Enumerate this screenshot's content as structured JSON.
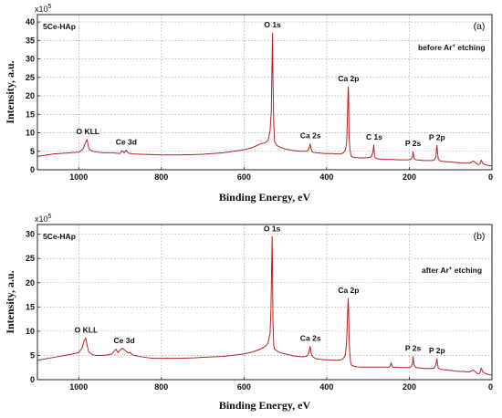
{
  "chart_data": [
    {
      "type": "line",
      "panel_label": "(a)",
      "sample_label": "5Ce-HAp",
      "condition_label_prefix": "before Ar",
      "condition_label_sup": "+",
      "condition_label_suffix": " etching",
      "multiplier_base": "x10",
      "multiplier_exp": "5",
      "xlabel": "Binding Energy, eV",
      "ylabel": "Intensity, a.u.",
      "xlim": [
        1100,
        0
      ],
      "ylim": [
        0,
        42
      ],
      "x_ticks": [
        1000,
        800,
        600,
        400,
        200,
        0
      ],
      "x_tick_labels": [
        "1000",
        "800",
        "600",
        "400",
        "200",
        "0"
      ],
      "y_ticks": [
        0,
        5,
        10,
        15,
        20,
        25,
        30,
        35,
        40
      ],
      "y_tick_labels": [
        "0",
        "5",
        "10",
        "15",
        "20",
        "25",
        "30",
        "35",
        "40"
      ],
      "grid": true,
      "line_color": "#b22222",
      "peaks": [
        {
          "name": "O KLL",
          "x": 978,
          "y": 8.2
        },
        {
          "name": "Ce 3d",
          "x": 885,
          "y": 5.3
        },
        {
          "name": "O 1s",
          "x": 531,
          "y": 37.0
        },
        {
          "name": "Ca 2s",
          "x": 439,
          "y": 7.0
        },
        {
          "name": "Ca 2p",
          "x": 347,
          "y": 22.5
        },
        {
          "name": "C 1s",
          "x": 285,
          "y": 6.7
        },
        {
          "name": "P 2s",
          "x": 191,
          "y": 4.9
        },
        {
          "name": "P 2p",
          "x": 133,
          "y": 6.6
        }
      ],
      "series": [
        {
          "x": [
            1100,
            1060,
            1020,
            1000,
            990,
            985,
            980,
            976,
            972,
            965,
            955,
            940,
            920,
            900,
            895,
            890,
            885,
            880,
            870,
            850,
            820,
            800,
            760,
            720,
            700,
            650,
            600,
            580,
            560,
            548,
            542,
            537,
            534,
            532,
            531,
            530,
            528,
            526,
            520,
            510,
            500,
            490,
            480,
            470,
            460,
            450,
            445,
            442,
            440,
            438,
            436,
            432,
            425,
            415,
            405,
            395,
            385,
            375,
            365,
            360,
            355,
            352,
            350,
            348,
            347,
            346,
            344,
            342,
            340,
            335,
            330,
            320,
            310,
            300,
            292,
            288,
            286,
            285,
            284,
            282,
            278,
            270,
            260,
            250,
            240,
            230,
            220,
            210,
            200,
            195,
            192,
            191,
            190,
            188,
            184,
            175,
            165,
            155,
            145,
            140,
            136,
            134,
            133,
            132,
            130,
            126,
            120,
            110,
            100,
            90,
            80,
            70,
            60,
            55,
            50,
            45,
            40,
            35,
            32,
            30,
            28,
            26,
            22,
            15,
            10,
            5,
            0
          ],
          "y": [
            3.6,
            4.3,
            4.6,
            4.8,
            5.5,
            7.0,
            8.2,
            6.0,
            5.3,
            5.0,
            4.8,
            4.6,
            4.6,
            4.4,
            5.2,
            4.6,
            5.3,
            4.5,
            4.3,
            4.2,
            4.1,
            4.0,
            4.0,
            4.1,
            4.2,
            4.6,
            5.4,
            6.0,
            7.0,
            7.4,
            7.9,
            10.5,
            16.0,
            30.0,
            37.0,
            25.0,
            12.0,
            7.5,
            6.5,
            6.0,
            5.6,
            5.4,
            5.2,
            5.1,
            5.0,
            5.0,
            5.3,
            6.0,
            7.0,
            5.8,
            5.0,
            4.7,
            4.6,
            4.5,
            4.4,
            4.4,
            4.4,
            4.3,
            4.3,
            4.6,
            5.2,
            7.0,
            13.0,
            22.5,
            21.0,
            10.0,
            6.0,
            4.2,
            3.6,
            3.4,
            3.3,
            3.2,
            3.2,
            3.3,
            3.5,
            4.8,
            6.7,
            5.0,
            3.6,
            3.2,
            3.0,
            2.9,
            2.8,
            2.8,
            2.8,
            2.7,
            2.7,
            2.7,
            2.7,
            2.9,
            3.8,
            4.9,
            4.0,
            3.0,
            2.7,
            2.6,
            2.5,
            2.5,
            2.5,
            2.6,
            3.4,
            5.8,
            6.6,
            5.0,
            2.9,
            2.4,
            2.3,
            2.2,
            2.1,
            2.0,
            1.9,
            1.8,
            1.8,
            1.8,
            2.0,
            2.4,
            1.9,
            1.5,
            1.4,
            1.5,
            1.9,
            2.6,
            1.7,
            1.3,
            1.2,
            1.1,
            1.0
          ]
        }
      ]
    },
    {
      "type": "line",
      "panel_label": "(b)",
      "sample_label": "5Ce-HAp",
      "condition_label_prefix": "after Ar",
      "condition_label_sup": "+",
      "condition_label_suffix": " etching",
      "multiplier_base": "x10",
      "multiplier_exp": "5",
      "xlabel": "Binding Energy, eV",
      "ylabel": "Intensity, a.u.",
      "xlim": [
        1100,
        0
      ],
      "ylim": [
        0,
        32
      ],
      "x_ticks": [
        1000,
        800,
        600,
        400,
        200,
        0
      ],
      "x_tick_labels": [
        "1000",
        "800",
        "600",
        "400",
        "200",
        "0"
      ],
      "y_ticks": [
        0,
        5,
        10,
        15,
        20,
        25,
        30
      ],
      "y_tick_labels": [
        "0",
        "5",
        "10",
        "15",
        "20",
        "25",
        "30"
      ],
      "grid": true,
      "line_color": "#b22222",
      "peaks": [
        {
          "name": "O KLL",
          "x": 982,
          "y": 8.6
        },
        {
          "name": "Ce 3d",
          "x": 890,
          "y": 6.4
        },
        {
          "name": "O 1s",
          "x": 532,
          "y": 29.5
        },
        {
          "name": "Ca 2s",
          "x": 439,
          "y": 6.9
        },
        {
          "name": "Ca 2p",
          "x": 347,
          "y": 16.8
        },
        {
          "name": "P 2s",
          "x": 191,
          "y": 4.8
        },
        {
          "name": "P 2p",
          "x": 133,
          "y": 4.3
        }
      ],
      "series": [
        {
          "x": [
            1100,
            1060,
            1020,
            1000,
            992,
            987,
            983,
            980,
            976,
            970,
            960,
            945,
            930,
            920,
            915,
            910,
            905,
            900,
            895,
            890,
            885,
            880,
            875,
            870,
            860,
            840,
            820,
            800,
            760,
            720,
            700,
            650,
            600,
            580,
            560,
            548,
            542,
            537,
            535,
            533,
            532,
            531,
            530,
            528,
            526,
            520,
            510,
            500,
            490,
            480,
            470,
            460,
            450,
            445,
            442,
            440,
            438,
            436,
            432,
            425,
            415,
            405,
            395,
            385,
            375,
            365,
            360,
            355,
            352,
            350,
            348,
            347,
            346,
            344,
            342,
            340,
            335,
            330,
            320,
            310,
            300,
            290,
            285,
            280,
            270,
            260,
            250,
            246,
            244,
            242,
            240,
            230,
            220,
            210,
            200,
            195,
            192,
            191,
            190,
            188,
            184,
            175,
            165,
            155,
            145,
            140,
            136,
            134,
            133,
            132,
            130,
            126,
            120,
            110,
            100,
            90,
            80,
            70,
            60,
            55,
            50,
            45,
            40,
            35,
            32,
            30,
            28,
            26,
            22,
            15,
            10,
            5,
            0
          ],
          "y": [
            4.0,
            4.6,
            5.2,
            5.6,
            6.5,
            8.0,
            8.6,
            7.2,
            5.8,
            5.3,
            5.0,
            5.0,
            5.1,
            5.3,
            5.8,
            6.3,
            5.6,
            6.1,
            6.5,
            6.2,
            5.8,
            5.5,
            5.6,
            5.1,
            4.9,
            4.6,
            4.4,
            4.4,
            4.4,
            4.5,
            4.6,
            4.8,
            5.3,
            5.7,
            6.3,
            6.9,
            7.5,
            9.5,
            14.0,
            24.0,
            29.5,
            22.0,
            12.0,
            7.0,
            6.3,
            5.9,
            5.5,
            5.3,
            5.1,
            4.9,
            4.8,
            4.7,
            4.8,
            5.1,
            6.0,
            6.9,
            5.8,
            5.0,
            4.6,
            4.3,
            4.2,
            4.1,
            4.1,
            4.0,
            4.0,
            4.1,
            4.4,
            5.0,
            7.5,
            12.0,
            16.8,
            15.0,
            9.0,
            5.5,
            3.5,
            3.0,
            2.8,
            2.7,
            2.6,
            2.6,
            2.6,
            2.6,
            2.6,
            2.6,
            2.6,
            2.6,
            2.6,
            2.9,
            3.5,
            2.9,
            2.6,
            2.6,
            2.5,
            2.5,
            2.5,
            2.7,
            3.6,
            4.8,
            3.9,
            2.9,
            2.5,
            2.4,
            2.3,
            2.3,
            2.3,
            2.4,
            3.0,
            4.0,
            4.3,
            3.5,
            2.4,
            2.2,
            2.1,
            2.0,
            1.9,
            1.8,
            1.7,
            1.7,
            1.6,
            1.6,
            1.8,
            2.0,
            1.6,
            1.3,
            1.2,
            1.3,
            1.8,
            2.4,
            1.6,
            1.2,
            1.1,
            1.0,
            1.0
          ]
        }
      ]
    }
  ]
}
